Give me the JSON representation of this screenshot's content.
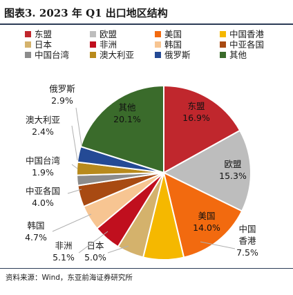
{
  "title": "图表3.   2023 年 Q1 出口地区结构",
  "source": "资料来源：Wind，东亚前海证券研究所",
  "chart_data": {
    "type": "pie",
    "title": "图表3.   2023 年 Q1 出口地区结构",
    "legend_position": "top",
    "slices": [
      {
        "label": "东盟",
        "value": 16.9,
        "display": "16.9%",
        "color": "#c0272d"
      },
      {
        "label": "欧盟",
        "value": 15.3,
        "display": "15.3%",
        "color": "#bdbdbd"
      },
      {
        "label": "美国",
        "value": 14.0,
        "display": "14.0%",
        "color": "#f26a0f"
      },
      {
        "label": "中国香港",
        "value": 7.5,
        "display": "7.5%",
        "color": "#f5b800"
      },
      {
        "label": "日本",
        "value": 5.0,
        "display": "5.0%",
        "color": "#d4b26c"
      },
      {
        "label": "非洲",
        "value": 5.1,
        "display": "5.1%",
        "color": "#c00f1e"
      },
      {
        "label": "韩国",
        "value": 4.7,
        "display": "4.7%",
        "color": "#f7c592"
      },
      {
        "label": "中亚各国",
        "value": 4.0,
        "display": "4.0%",
        "color": "#a84a12"
      },
      {
        "label": "中国台湾",
        "value": 1.9,
        "display": "1.9%",
        "color": "#8c8c8c"
      },
      {
        "label": "澳大利亚",
        "value": 2.4,
        "display": "2.4%",
        "color": "#b88a1c"
      },
      {
        "label": "俄罗斯",
        "value": 2.9,
        "display": "2.9%",
        "color": "#244a95"
      },
      {
        "label": "其他",
        "value": 20.1,
        "display": "20.1%",
        "color": "#3a6b2b"
      }
    ]
  }
}
